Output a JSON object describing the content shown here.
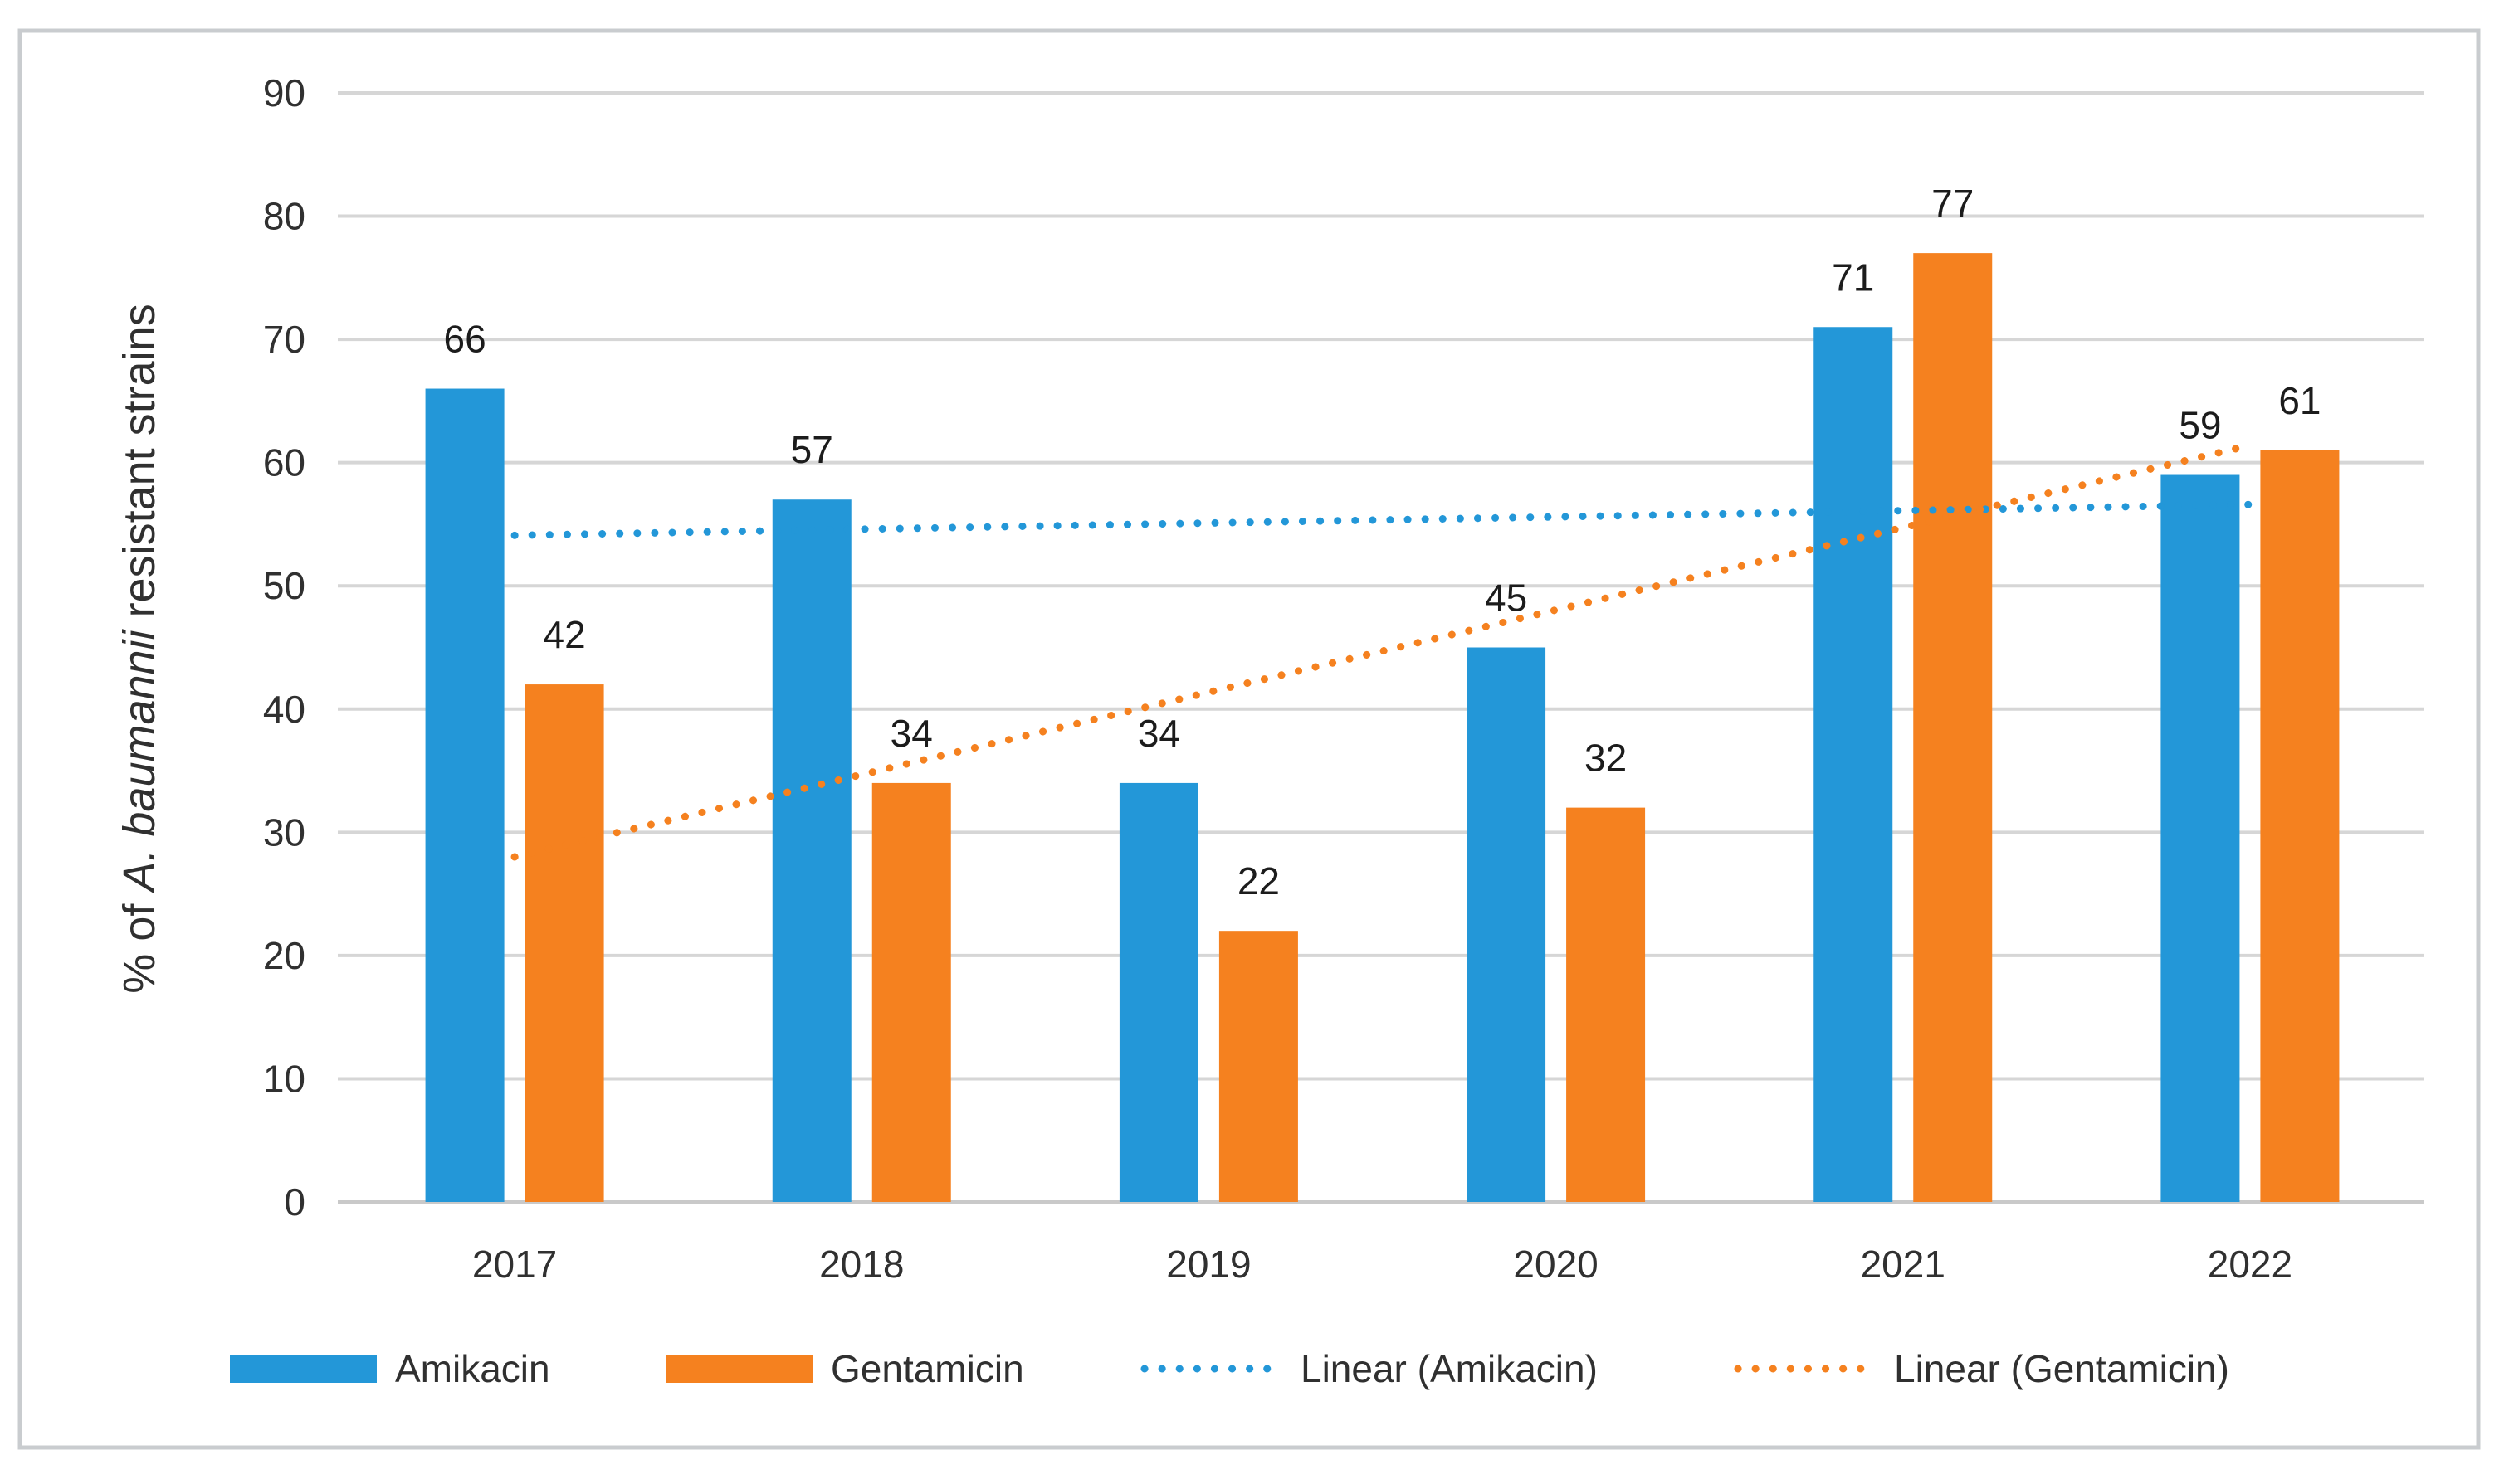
{
  "figure": {
    "background": "#ffffff",
    "border_color": "#c9cccf"
  },
  "chart_data": {
    "type": "bar",
    "title": "",
    "categories": [
      "2017",
      "2018",
      "2019",
      "2020",
      "2021",
      "2022"
    ],
    "series": [
      {
        "name": "Amikacin",
        "color": "#2397d8",
        "values": [
          66,
          57,
          34,
          45,
          71,
          59
        ]
      },
      {
        "name": "Gentamicin",
        "color": "#f5811f",
        "values": [
          42,
          34,
          22,
          32,
          77,
          61
        ]
      }
    ],
    "data_labels": {
      "Amikacin": [
        "66",
        "57",
        "34",
        "45",
        "71",
        "59"
      ],
      "Gentamicin": [
        "42",
        "34",
        "22",
        "32",
        "77",
        "61"
      ]
    },
    "trendlines": [
      {
        "label": "Linear (Amikacin)",
        "series": "Amikacin",
        "color": "#2397d8",
        "start_value": 54.1,
        "end_value": 56.6,
        "style": "dotted"
      },
      {
        "label": "Linear (Gentamicin)",
        "series": "Gentamicin",
        "color": "#f5811f",
        "start_value": 28.0,
        "end_value": 61.4,
        "style": "dotted"
      }
    ],
    "ylabel": "% of A. baumannii resistant strains",
    "ylabel_parts": {
      "normal_prefix": "% of ",
      "italic": "A. baumannii",
      "normal_suffix": " resistant strains"
    },
    "xlabel": "",
    "ylim": [
      0,
      90
    ],
    "yticks": [
      0,
      10,
      20,
      30,
      40,
      50,
      60,
      70,
      80,
      90
    ],
    "grid": true,
    "legend_position": "bottom",
    "colors": {
      "gridline": "#d6d6d6",
      "zero_line": "#c9c9c9",
      "axis_text": "#303030",
      "value_label_text": "#1c1c1c"
    }
  }
}
